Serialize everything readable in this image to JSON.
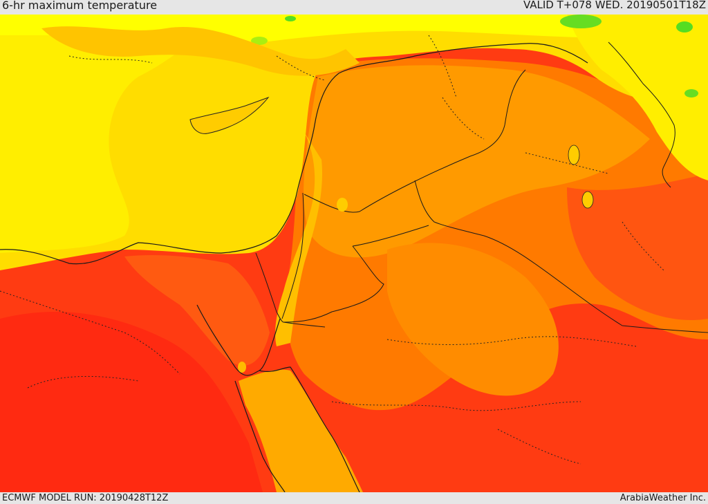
{
  "header": {
    "title": "6-hr maximum temperature",
    "valid": "VALID T+078 WED. 20190501T18Z"
  },
  "footer": {
    "model_run": "ECMWF MODEL RUN: 20190428T12Z",
    "credit": "ArabiaWeather Inc."
  },
  "palette": {
    "green": "#44dd22",
    "light_green": "#aaee11",
    "yellow": "#ffff00",
    "gold": "#ffdd00",
    "amber": "#ffbb00",
    "orange": "#ff9900",
    "dark_orange": "#ff7700",
    "red_orange": "#ff5511",
    "red": "#ff3311",
    "deep_red": "#ff2a11"
  }
}
